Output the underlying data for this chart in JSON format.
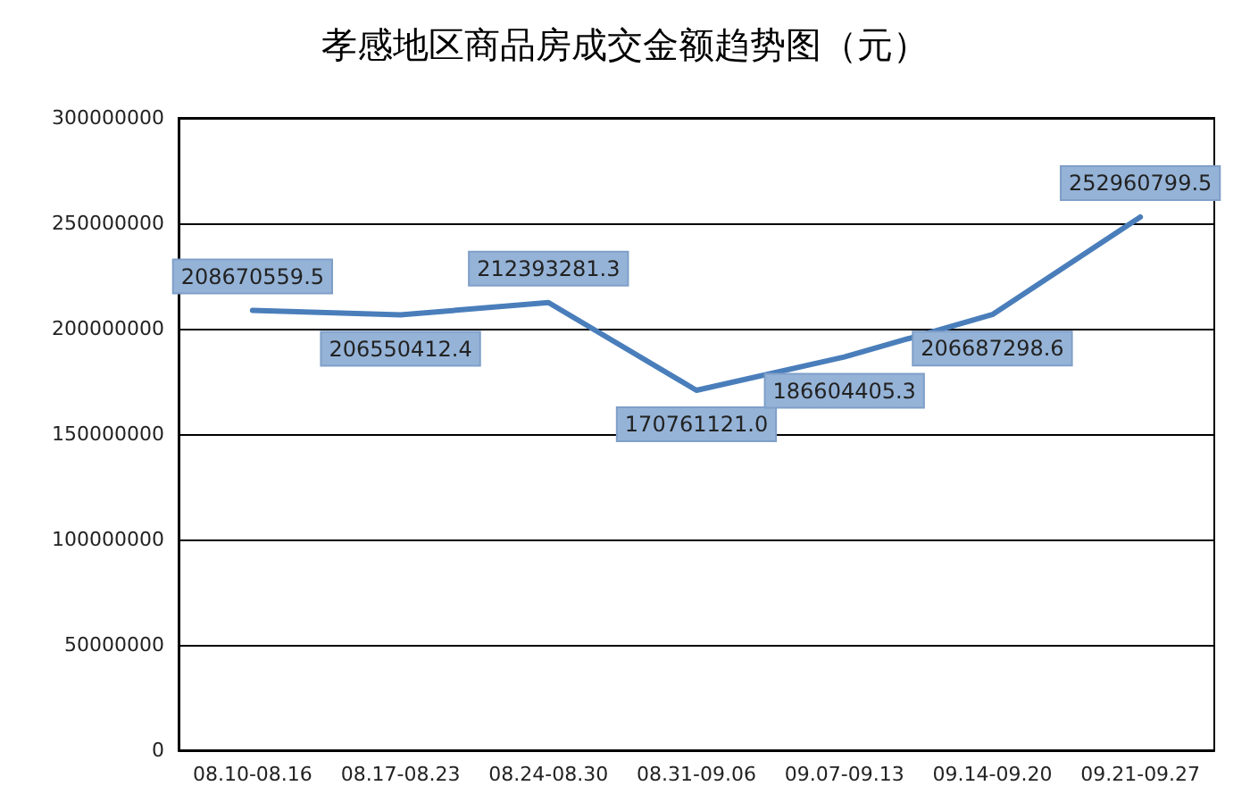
{
  "chart_data": {
    "type": "line",
    "title": "孝感地区商品房成交金额趋势图（元）",
    "categories": [
      "08.10-08.16",
      "08.17-08.23",
      "08.24-08.30",
      "08.31-09.06",
      "09.07-09.13",
      "09.14-09.20",
      "09.21-09.27"
    ],
    "series": [
      {
        "color": "#4a7ebb",
        "values": [
          208670559.5,
          206550412.4,
          212393281.3,
          170761121.0,
          186604405.3,
          206687298.6,
          252960799.5
        ],
        "value_labels": [
          "208670559.5",
          "206550412.4",
          "212393281.3",
          "170761121.0",
          "186604405.3",
          "206687298.6",
          "252960799.5"
        ]
      }
    ],
    "ylim": [
      0,
      300000000
    ],
    "yticks": [
      0,
      50000000,
      100000000,
      150000000,
      200000000,
      250000000,
      300000000
    ],
    "grid": "y",
    "marker": "none",
    "line_style": "solid"
  }
}
